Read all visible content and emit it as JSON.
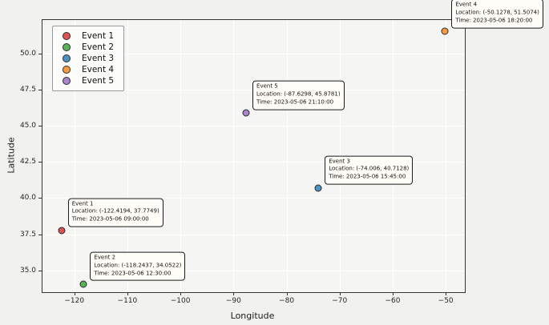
{
  "chart_data": {
    "type": "scatter",
    "xlabel": "Longitude",
    "ylabel": "Latitude",
    "xlim": [
      -126.0,
      -46.4
    ],
    "ylim": [
      33.5,
      52.3
    ],
    "grid": true,
    "legend_position": "upper left",
    "x_tick_values": [
      -120,
      -110,
      -100,
      -90,
      -80,
      -70,
      -60,
      -50
    ],
    "x_tick_labels": [
      "−120",
      "−110",
      "−100",
      "−90",
      "−80",
      "−70",
      "−60",
      "−50"
    ],
    "y_tick_values": [
      35.0,
      37.5,
      40.0,
      42.5,
      45.0,
      47.5,
      50.0
    ],
    "y_tick_labels": [
      "35.0",
      "37.5",
      "40.0",
      "42.5",
      "45.0",
      "47.5",
      "50.0"
    ],
    "series": [
      {
        "name": "Event 1",
        "color": "#de5253",
        "x": -122.4194,
        "y": 37.7749,
        "annotation": [
          "Event 1",
          "Location: (-122.4194, 37.7749)",
          "Time: 2023-05-06 09:00:00"
        ]
      },
      {
        "name": "Event 2",
        "color": "#56b356",
        "x": -118.2437,
        "y": 34.0522,
        "annotation": [
          "Event 2",
          "Location: (-118.2437, 34.0522)",
          "Time: 2023-05-06 12:30:00"
        ]
      },
      {
        "name": "Event 3",
        "color": "#4c92c3",
        "x": -74.006,
        "y": 40.7128,
        "annotation": [
          "Event 3",
          "Location: (-74.006, 40.7128)",
          "Time: 2023-05-06 15:45:00"
        ]
      },
      {
        "name": "Event 4",
        "color": "#f79b3e",
        "x": -50.1278,
        "y": 51.5074,
        "annotation": [
          "Event 4",
          "Location: (-50.1278, 51.5074)",
          "Time: 2023-05-06 18:20:00"
        ]
      },
      {
        "name": "Event 5",
        "color": "#a985ca",
        "x": -87.6298,
        "y": 45.8781,
        "annotation": [
          "Event 5",
          "Location: (-87.6298, 45.8781)",
          "Time: 2023-05-06 21:10:00"
        ]
      }
    ]
  },
  "colors": {
    "figure_bg": "#f1f1ef",
    "plot_bg": "#f5f5f3",
    "gridline": "#ffffff",
    "frame": "#333333",
    "marker_edge": "#2b2b2b",
    "annotation_bg": "#fffdf7",
    "annotation_border": "#1a1a1a",
    "legend_bg": "#fcfcfa",
    "legend_border": "#9a9a9a"
  }
}
